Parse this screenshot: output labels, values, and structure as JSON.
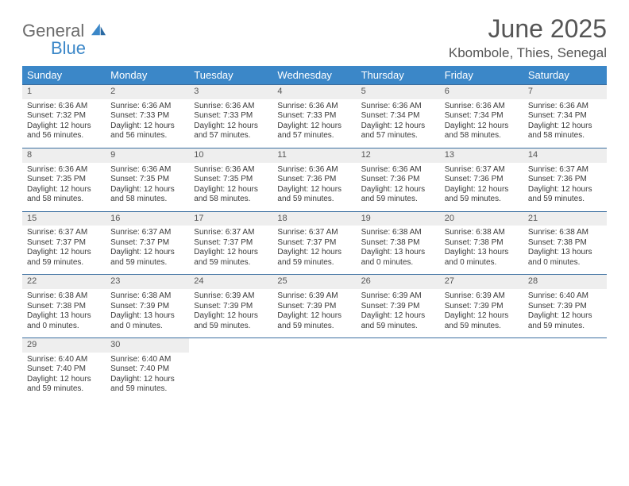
{
  "colors": {
    "header_bg": "#3b87c8",
    "header_text": "#ffffff",
    "row_rule": "#3b6fa0",
    "daynum_bg": "#eeeeee",
    "body_text": "#3a3a3a",
    "title_text": "#555555",
    "logo_gray": "#6b6b6b",
    "logo_blue": "#3b87c8"
  },
  "logo": {
    "part1": "General",
    "part2": "Blue"
  },
  "title": "June 2025",
  "location": "Kbombole, Thies, Senegal",
  "weekdays": [
    "Sunday",
    "Monday",
    "Tuesday",
    "Wednesday",
    "Thursday",
    "Friday",
    "Saturday"
  ],
  "weeks": [
    [
      {
        "n": "1",
        "sr": "Sunrise: 6:36 AM",
        "ss": "Sunset: 7:32 PM",
        "d1": "Daylight: 12 hours",
        "d2": "and 56 minutes."
      },
      {
        "n": "2",
        "sr": "Sunrise: 6:36 AM",
        "ss": "Sunset: 7:33 PM",
        "d1": "Daylight: 12 hours",
        "d2": "and 56 minutes."
      },
      {
        "n": "3",
        "sr": "Sunrise: 6:36 AM",
        "ss": "Sunset: 7:33 PM",
        "d1": "Daylight: 12 hours",
        "d2": "and 57 minutes."
      },
      {
        "n": "4",
        "sr": "Sunrise: 6:36 AM",
        "ss": "Sunset: 7:33 PM",
        "d1": "Daylight: 12 hours",
        "d2": "and 57 minutes."
      },
      {
        "n": "5",
        "sr": "Sunrise: 6:36 AM",
        "ss": "Sunset: 7:34 PM",
        "d1": "Daylight: 12 hours",
        "d2": "and 57 minutes."
      },
      {
        "n": "6",
        "sr": "Sunrise: 6:36 AM",
        "ss": "Sunset: 7:34 PM",
        "d1": "Daylight: 12 hours",
        "d2": "and 58 minutes."
      },
      {
        "n": "7",
        "sr": "Sunrise: 6:36 AM",
        "ss": "Sunset: 7:34 PM",
        "d1": "Daylight: 12 hours",
        "d2": "and 58 minutes."
      }
    ],
    [
      {
        "n": "8",
        "sr": "Sunrise: 6:36 AM",
        "ss": "Sunset: 7:35 PM",
        "d1": "Daylight: 12 hours",
        "d2": "and 58 minutes."
      },
      {
        "n": "9",
        "sr": "Sunrise: 6:36 AM",
        "ss": "Sunset: 7:35 PM",
        "d1": "Daylight: 12 hours",
        "d2": "and 58 minutes."
      },
      {
        "n": "10",
        "sr": "Sunrise: 6:36 AM",
        "ss": "Sunset: 7:35 PM",
        "d1": "Daylight: 12 hours",
        "d2": "and 58 minutes."
      },
      {
        "n": "11",
        "sr": "Sunrise: 6:36 AM",
        "ss": "Sunset: 7:36 PM",
        "d1": "Daylight: 12 hours",
        "d2": "and 59 minutes."
      },
      {
        "n": "12",
        "sr": "Sunrise: 6:36 AM",
        "ss": "Sunset: 7:36 PM",
        "d1": "Daylight: 12 hours",
        "d2": "and 59 minutes."
      },
      {
        "n": "13",
        "sr": "Sunrise: 6:37 AM",
        "ss": "Sunset: 7:36 PM",
        "d1": "Daylight: 12 hours",
        "d2": "and 59 minutes."
      },
      {
        "n": "14",
        "sr": "Sunrise: 6:37 AM",
        "ss": "Sunset: 7:36 PM",
        "d1": "Daylight: 12 hours",
        "d2": "and 59 minutes."
      }
    ],
    [
      {
        "n": "15",
        "sr": "Sunrise: 6:37 AM",
        "ss": "Sunset: 7:37 PM",
        "d1": "Daylight: 12 hours",
        "d2": "and 59 minutes."
      },
      {
        "n": "16",
        "sr": "Sunrise: 6:37 AM",
        "ss": "Sunset: 7:37 PM",
        "d1": "Daylight: 12 hours",
        "d2": "and 59 minutes."
      },
      {
        "n": "17",
        "sr": "Sunrise: 6:37 AM",
        "ss": "Sunset: 7:37 PM",
        "d1": "Daylight: 12 hours",
        "d2": "and 59 minutes."
      },
      {
        "n": "18",
        "sr": "Sunrise: 6:37 AM",
        "ss": "Sunset: 7:37 PM",
        "d1": "Daylight: 12 hours",
        "d2": "and 59 minutes."
      },
      {
        "n": "19",
        "sr": "Sunrise: 6:38 AM",
        "ss": "Sunset: 7:38 PM",
        "d1": "Daylight: 13 hours",
        "d2": "and 0 minutes."
      },
      {
        "n": "20",
        "sr": "Sunrise: 6:38 AM",
        "ss": "Sunset: 7:38 PM",
        "d1": "Daylight: 13 hours",
        "d2": "and 0 minutes."
      },
      {
        "n": "21",
        "sr": "Sunrise: 6:38 AM",
        "ss": "Sunset: 7:38 PM",
        "d1": "Daylight: 13 hours",
        "d2": "and 0 minutes."
      }
    ],
    [
      {
        "n": "22",
        "sr": "Sunrise: 6:38 AM",
        "ss": "Sunset: 7:38 PM",
        "d1": "Daylight: 13 hours",
        "d2": "and 0 minutes."
      },
      {
        "n": "23",
        "sr": "Sunrise: 6:38 AM",
        "ss": "Sunset: 7:39 PM",
        "d1": "Daylight: 13 hours",
        "d2": "and 0 minutes."
      },
      {
        "n": "24",
        "sr": "Sunrise: 6:39 AM",
        "ss": "Sunset: 7:39 PM",
        "d1": "Daylight: 12 hours",
        "d2": "and 59 minutes."
      },
      {
        "n": "25",
        "sr": "Sunrise: 6:39 AM",
        "ss": "Sunset: 7:39 PM",
        "d1": "Daylight: 12 hours",
        "d2": "and 59 minutes."
      },
      {
        "n": "26",
        "sr": "Sunrise: 6:39 AM",
        "ss": "Sunset: 7:39 PM",
        "d1": "Daylight: 12 hours",
        "d2": "and 59 minutes."
      },
      {
        "n": "27",
        "sr": "Sunrise: 6:39 AM",
        "ss": "Sunset: 7:39 PM",
        "d1": "Daylight: 12 hours",
        "d2": "and 59 minutes."
      },
      {
        "n": "28",
        "sr": "Sunrise: 6:40 AM",
        "ss": "Sunset: 7:39 PM",
        "d1": "Daylight: 12 hours",
        "d2": "and 59 minutes."
      }
    ],
    [
      {
        "n": "29",
        "sr": "Sunrise: 6:40 AM",
        "ss": "Sunset: 7:40 PM",
        "d1": "Daylight: 12 hours",
        "d2": "and 59 minutes."
      },
      {
        "n": "30",
        "sr": "Sunrise: 6:40 AM",
        "ss": "Sunset: 7:40 PM",
        "d1": "Daylight: 12 hours",
        "d2": "and 59 minutes."
      },
      {
        "empty": true,
        "n": "",
        "sr": "",
        "ss": "",
        "d1": "",
        "d2": ""
      },
      {
        "empty": true,
        "n": "",
        "sr": "",
        "ss": "",
        "d1": "",
        "d2": ""
      },
      {
        "empty": true,
        "n": "",
        "sr": "",
        "ss": "",
        "d1": "",
        "d2": ""
      },
      {
        "empty": true,
        "n": "",
        "sr": "",
        "ss": "",
        "d1": "",
        "d2": ""
      },
      {
        "empty": true,
        "n": "",
        "sr": "",
        "ss": "",
        "d1": "",
        "d2": ""
      }
    ]
  ]
}
